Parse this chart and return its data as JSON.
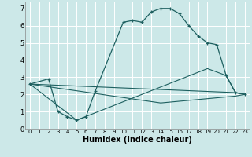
{
  "xlabel": "Humidex (Indice chaleur)",
  "bg_color": "#cce8e8",
  "line_color": "#1e6060",
  "grid_color": "#ffffff",
  "xlim": [
    -0.5,
    23.5
  ],
  "ylim": [
    0,
    7.4
  ],
  "xticks": [
    0,
    1,
    2,
    3,
    4,
    5,
    6,
    7,
    8,
    9,
    10,
    11,
    12,
    13,
    14,
    15,
    16,
    17,
    18,
    19,
    20,
    21,
    22,
    23
  ],
  "yticks": [
    0,
    1,
    2,
    3,
    4,
    5,
    6,
    7
  ],
  "line1_x": [
    0,
    2,
    3,
    4,
    5,
    6,
    7,
    10,
    11,
    12,
    13,
    14,
    15,
    16,
    17,
    18,
    19,
    20,
    21,
    22,
    23
  ],
  "line1_y": [
    2.6,
    2.9,
    1.0,
    0.7,
    0.5,
    0.7,
    2.2,
    6.2,
    6.3,
    6.2,
    6.8,
    7.0,
    7.0,
    6.7,
    6.0,
    5.4,
    5.0,
    4.9,
    3.1,
    2.1,
    2.0
  ],
  "line2_x": [
    0,
    22,
    23
  ],
  "line2_y": [
    2.6,
    2.1,
    2.0
  ],
  "line3_x": [
    0,
    14,
    22,
    23
  ],
  "line3_y": [
    2.6,
    1.5,
    1.9,
    2.0
  ],
  "line4_x": [
    0,
    5,
    19,
    21,
    22,
    23
  ],
  "line4_y": [
    2.6,
    0.5,
    3.5,
    3.1,
    2.1,
    2.0
  ]
}
